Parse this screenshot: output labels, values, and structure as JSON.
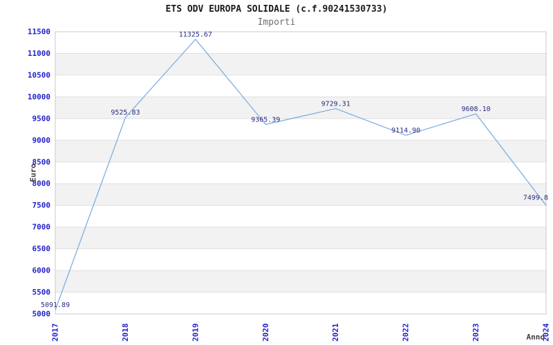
{
  "chart_data": {
    "type": "line",
    "title": "ETS ODV EUROPA SOLIDALE (c.f.90241530733)",
    "subtitle": "Importi",
    "xlabel": "Anno",
    "ylabel": "Euro",
    "categories": [
      "2017",
      "2018",
      "2019",
      "2020",
      "2021",
      "2022",
      "2023",
      "2024"
    ],
    "series": [
      {
        "name": "Importi",
        "values": [
          5091.89,
          9525.83,
          11325.67,
          9365.39,
          9729.31,
          9114.9,
          9608.1,
          7499.8
        ],
        "point_labels": [
          "5091.89",
          "9525.83",
          "11325.67",
          "9365.39",
          "9729.31",
          "9114.90",
          "9608.10",
          "7499.8"
        ]
      }
    ],
    "ylim": [
      5000,
      11500
    ],
    "ytick_step": 500,
    "ytick_labels": [
      "5000",
      "5500",
      "6000",
      "6500",
      "7000",
      "7500",
      "8000",
      "8500",
      "9000",
      "9500",
      "10000",
      "10500",
      "11000",
      "11500"
    ],
    "grid": "horizontal gridlines with alternating shaded bands",
    "legend_position": "none",
    "colors": {
      "line": "#7fafdf",
      "tick_label": "#2222cc",
      "point_label": "#2b2b80",
      "axis_title": "#3c3c3c",
      "title": "#1a1a1a",
      "subtitle": "#6e6e6e",
      "band_shaded": "#f2f2f2",
      "band_plain": "#ffffff",
      "gridline": "#e0e0e0",
      "border": "#c9c9c9",
      "background": "#ffffff"
    }
  }
}
